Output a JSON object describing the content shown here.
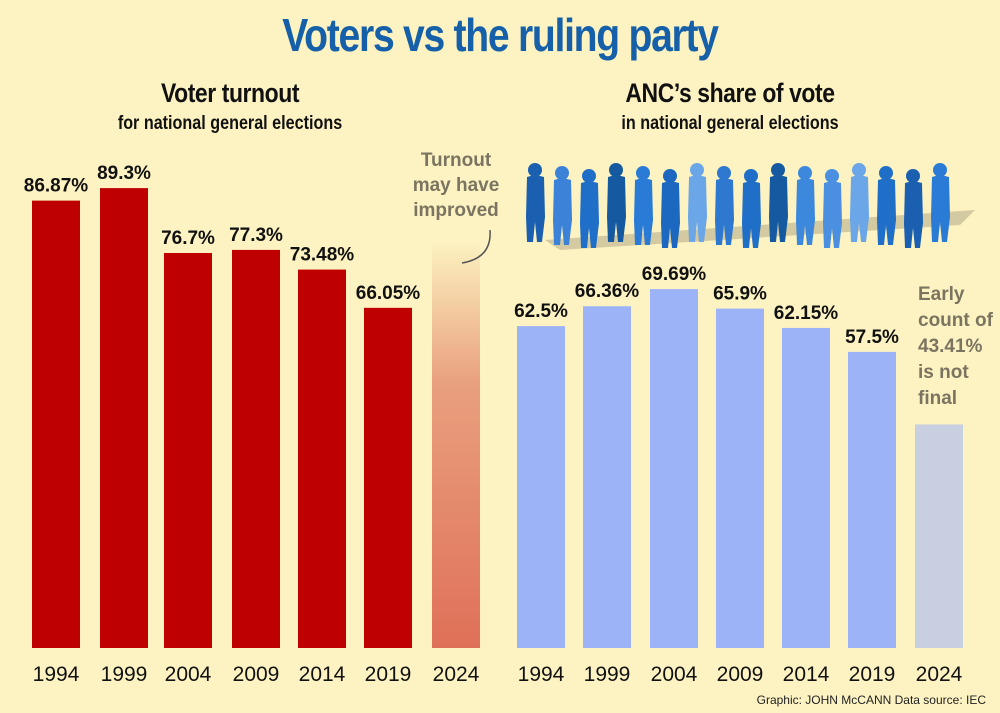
{
  "title": "Voters vs the ruling party",
  "credit": "Graphic: JOHN McCANN  Data source: IEC",
  "colors": {
    "turnout": "#bf0000",
    "turnout_2024": "#e07a60",
    "anc": "#9db3f7",
    "anc_2024": "#c8cfe0",
    "title": "#1560a8"
  },
  "chart_data": [
    {
      "type": "bar",
      "title": "Voter turnout",
      "subtitle": "for national general elections",
      "categories": [
        "1994",
        "1999",
        "2004",
        "2009",
        "2014",
        "2019",
        "2024"
      ],
      "values": [
        86.87,
        89.3,
        76.7,
        77.3,
        73.48,
        66.05,
        null
      ],
      "labels": [
        "86.87%",
        "89.3%",
        "76.7%",
        "77.3%",
        "73.48%",
        "66.05%",
        ""
      ],
      "annotation": [
        "Turnout",
        "may have",
        "improved"
      ],
      "ylim": [
        0,
        90
      ]
    },
    {
      "type": "bar",
      "title": "ANC’s share of vote",
      "subtitle": "in national general elections",
      "categories": [
        "1994",
        "1999",
        "2004",
        "2009",
        "2014",
        "2019",
        "2024"
      ],
      "values": [
        62.5,
        66.36,
        69.69,
        65.9,
        62.15,
        57.5,
        43.41
      ],
      "labels": [
        "62.5%",
        "66.36%",
        "69.69%",
        "65.9%",
        "62.15%",
        "57.5%",
        ""
      ],
      "annotation": [
        "Early",
        "count of",
        "43.41%",
        "is not",
        "final"
      ],
      "ylim": [
        0,
        90
      ]
    }
  ]
}
